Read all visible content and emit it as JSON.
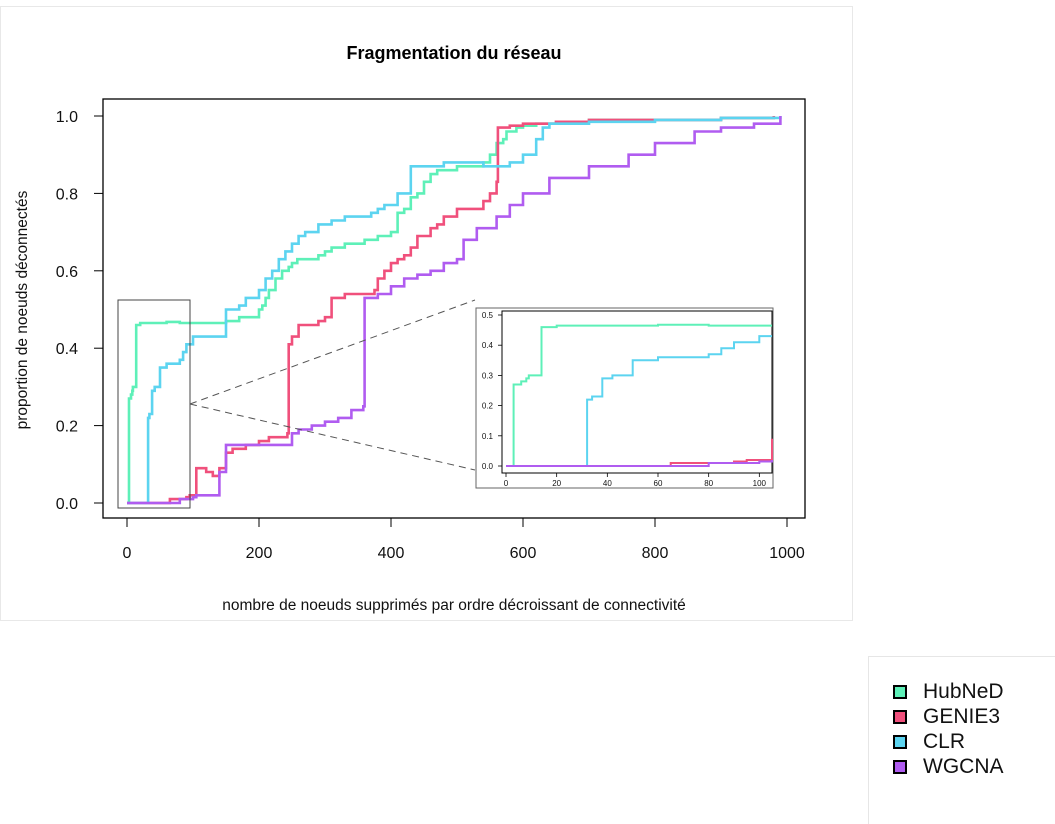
{
  "chart_data": {
    "type": "line",
    "title": "Fragmentation du réseau",
    "xlabel": "nombre de noeuds supprimés par ordre décroissant de connectivité",
    "ylabel": "proportion de noeuds déconnectés",
    "xlim": [
      0,
      1000
    ],
    "ylim": [
      0,
      1.0
    ],
    "xticks": [
      "0",
      "200",
      "400",
      "600",
      "800",
      "1000"
    ],
    "yticks": [
      "0.0",
      "0.2",
      "0.4",
      "0.6",
      "0.8",
      "1.0"
    ],
    "grid": false,
    "legend_position": "bottom-right, outside plot",
    "series": [
      {
        "name": "HubNeD",
        "color": "#5ef0b8",
        "x": [
          0,
          2,
          3,
          6,
          8,
          9,
          12,
          14,
          20,
          30,
          50,
          60,
          80,
          100,
          120,
          150,
          170,
          200,
          205,
          210,
          215,
          225,
          235,
          245,
          250,
          258,
          270,
          290,
          300,
          310,
          330,
          350,
          360,
          365,
          380,
          400,
          410,
          420,
          430,
          440,
          450,
          460,
          470,
          480,
          500,
          520,
          540,
          550,
          560,
          570,
          575,
          590,
          600,
          620,
          640,
          650,
          700,
          800,
          900,
          980
        ],
        "y": [
          0.0,
          0.0,
          0.27,
          0.28,
          0.29,
          0.3,
          0.3,
          0.46,
          0.465,
          0.465,
          0.465,
          0.468,
          0.465,
          0.465,
          0.465,
          0.47,
          0.48,
          0.5,
          0.51,
          0.53,
          0.55,
          0.58,
          0.6,
          0.61,
          0.62,
          0.63,
          0.63,
          0.64,
          0.65,
          0.66,
          0.67,
          0.67,
          0.68,
          0.68,
          0.69,
          0.7,
          0.75,
          0.76,
          0.79,
          0.8,
          0.83,
          0.85,
          0.86,
          0.86,
          0.87,
          0.87,
          0.88,
          0.9,
          0.93,
          0.94,
          0.96,
          0.97,
          0.975,
          0.98,
          0.98,
          0.985,
          0.99,
          0.99,
          0.995,
          1.0
        ]
      },
      {
        "name": "GENIE3",
        "color": "#f0507c",
        "x": [
          0,
          20,
          40,
          60,
          65,
          80,
          90,
          95,
          100,
          105,
          110,
          120,
          130,
          140,
          150,
          160,
          180,
          200,
          215,
          230,
          240,
          243,
          245,
          250,
          260,
          280,
          290,
          300,
          310,
          330,
          350,
          360,
          375,
          380,
          390,
          400,
          410,
          420,
          430,
          440,
          460,
          470,
          480,
          500,
          520,
          540,
          550,
          560,
          562,
          580,
          600,
          650,
          700,
          800,
          900,
          980
        ],
        "y": [
          0.0,
          0.0,
          0.0,
          0.0,
          0.01,
          0.01,
          0.015,
          0.02,
          0.02,
          0.09,
          0.09,
          0.08,
          0.07,
          0.09,
          0.13,
          0.14,
          0.15,
          0.16,
          0.17,
          0.17,
          0.17,
          0.18,
          0.41,
          0.43,
          0.46,
          0.46,
          0.47,
          0.48,
          0.53,
          0.54,
          0.54,
          0.54,
          0.55,
          0.58,
          0.6,
          0.62,
          0.63,
          0.64,
          0.66,
          0.69,
          0.71,
          0.72,
          0.74,
          0.76,
          0.76,
          0.78,
          0.8,
          0.83,
          0.97,
          0.975,
          0.98,
          0.985,
          0.99,
          0.99,
          0.995,
          1.0
        ]
      },
      {
        "name": "CLR",
        "color": "#5cd4f0",
        "x": [
          0,
          20,
          30,
          32,
          34,
          38,
          42,
          50,
          60,
          70,
          78,
          80,
          85,
          90,
          100,
          140,
          150,
          160,
          170,
          180,
          200,
          210,
          220,
          230,
          240,
          250,
          260,
          270,
          290,
          310,
          330,
          350,
          370,
          380,
          390,
          400,
          410,
          430,
          440,
          460,
          480,
          500,
          540,
          560,
          580,
          600,
          620,
          630,
          640,
          700,
          800,
          900,
          990
        ],
        "y": [
          0.0,
          0.0,
          0.0,
          0.22,
          0.23,
          0.29,
          0.3,
          0.35,
          0.36,
          0.36,
          0.36,
          0.37,
          0.39,
          0.41,
          0.43,
          0.43,
          0.5,
          0.5,
          0.51,
          0.53,
          0.55,
          0.58,
          0.6,
          0.63,
          0.65,
          0.67,
          0.69,
          0.7,
          0.72,
          0.73,
          0.74,
          0.74,
          0.75,
          0.76,
          0.77,
          0.77,
          0.8,
          0.87,
          0.87,
          0.87,
          0.88,
          0.88,
          0.87,
          0.87,
          0.88,
          0.9,
          0.94,
          0.97,
          0.98,
          0.985,
          0.99,
          0.995,
          1.0
        ]
      },
      {
        "name": "WGCNA",
        "color": "#b05cf0",
        "x": [
          0,
          20,
          40,
          60,
          80,
          100,
          105,
          110,
          120,
          140,
          150,
          170,
          180,
          200,
          220,
          240,
          250,
          260,
          280,
          300,
          320,
          340,
          358,
          360,
          380,
          400,
          420,
          440,
          460,
          480,
          500,
          510,
          530,
          560,
          580,
          600,
          640,
          700,
          760,
          800,
          860,
          900,
          950,
          990
        ],
        "y": [
          0.0,
          0.0,
          0.0,
          0.0,
          0.01,
          0.015,
          0.02,
          0.02,
          0.02,
          0.08,
          0.15,
          0.15,
          0.15,
          0.15,
          0.15,
          0.15,
          0.18,
          0.19,
          0.2,
          0.21,
          0.22,
          0.24,
          0.25,
          0.53,
          0.54,
          0.56,
          0.58,
          0.59,
          0.6,
          0.62,
          0.63,
          0.68,
          0.71,
          0.74,
          0.77,
          0.8,
          0.84,
          0.87,
          0.9,
          0.93,
          0.96,
          0.97,
          0.98,
          1.0
        ]
      }
    ],
    "inset": {
      "xlim": [
        0,
        105
      ],
      "ylim": [
        0,
        0.5
      ],
      "xticks": [
        "0",
        "20",
        "40",
        "60",
        "80",
        "100"
      ],
      "yticks": [
        "0.0",
        "0.1",
        "0.2",
        "0.3",
        "0.4",
        "0.5"
      ]
    }
  },
  "legend": {
    "items": [
      {
        "label": "HubNeD",
        "color": "#5ef0b8"
      },
      {
        "label": "GENIE3",
        "color": "#f0507c"
      },
      {
        "label": "CLR",
        "color": "#5cd4f0"
      },
      {
        "label": "WGCNA",
        "color": "#b05cf0"
      }
    ]
  }
}
